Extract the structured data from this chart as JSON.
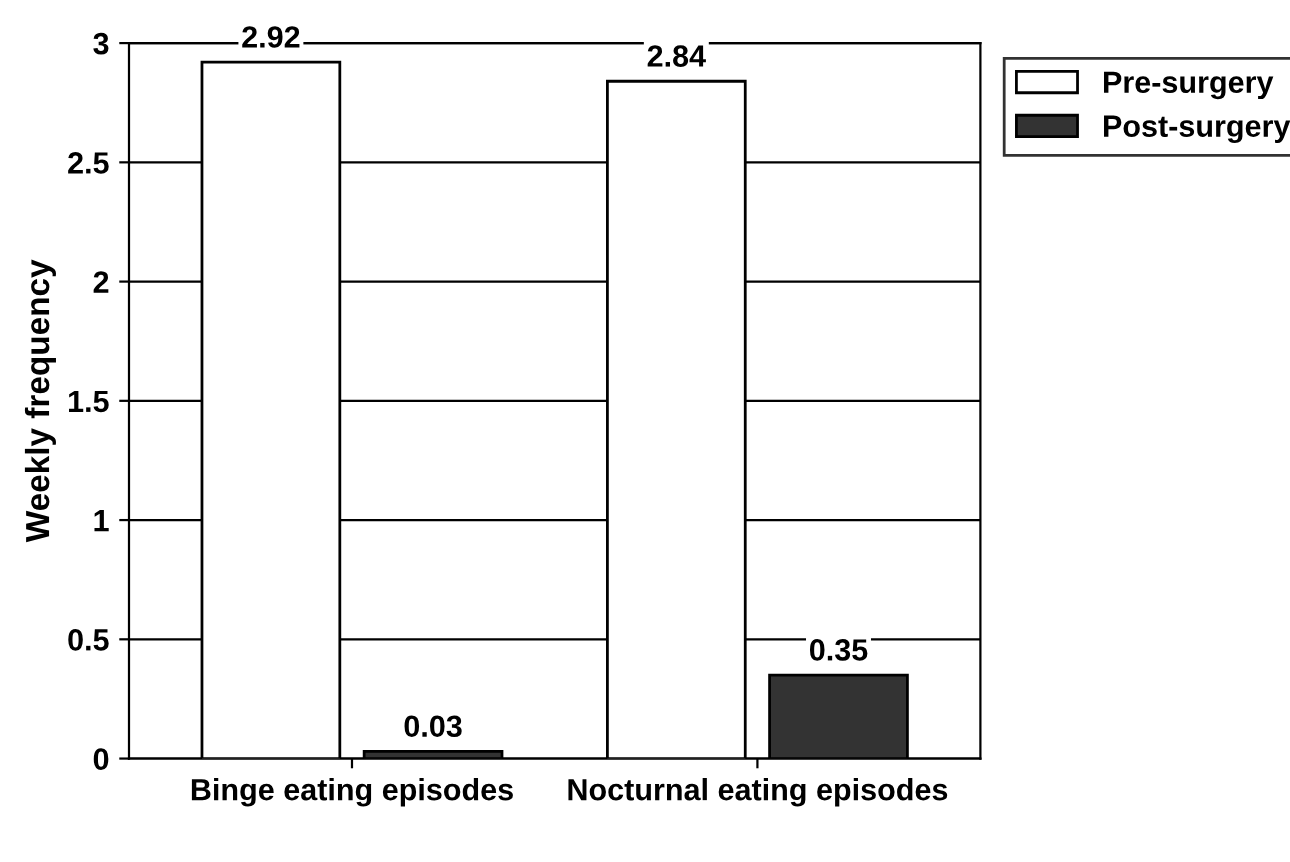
{
  "chart_data": {
    "type": "bar",
    "ylabel": "Weekly frequency",
    "categories": [
      "Binge eating episodes",
      "Nocturnal eating episodes"
    ],
    "series": [
      {
        "name": "Pre-surgery",
        "color": "#ffffff",
        "values": [
          2.92,
          2.84
        ]
      },
      {
        "name": "Post-surgery",
        "color": "#333333",
        "values": [
          0.03,
          0.35
        ]
      }
    ],
    "ylim": [
      0,
      3
    ],
    "yticks": [
      0,
      0.5,
      1,
      1.5,
      2,
      2.5,
      3
    ],
    "grid": "y",
    "legend": "top right",
    "data_labels": true
  }
}
